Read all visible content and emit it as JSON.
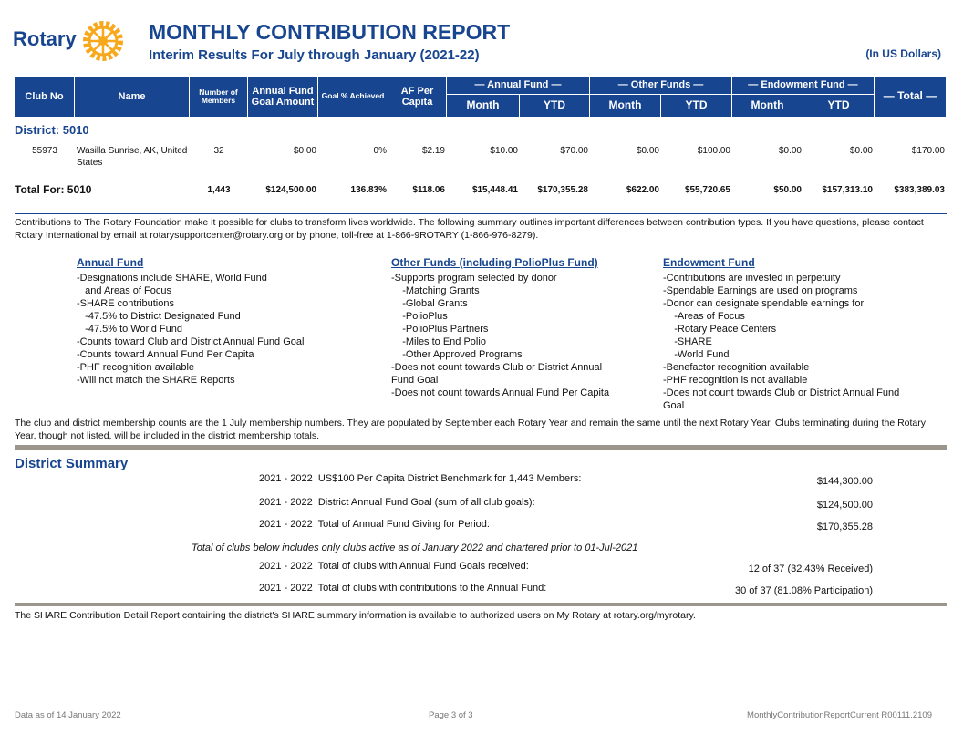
{
  "header": {
    "logo_text": "Rotary",
    "title": "MONTHLY CONTRIBUTION REPORT",
    "subtitle": "Interim Results For July through January (2021-22)",
    "currency_note": "(In US Dollars)"
  },
  "table": {
    "columns": [
      "Club No",
      "Name",
      "Number of Members",
      "Annual Fund Goal Amount",
      "Goal % Achieved",
      "AF Per Capita"
    ],
    "groups": [
      "— Annual Fund —",
      "— Other Funds —",
      "— Endowment Fund —"
    ],
    "subcolumns": [
      "Month",
      "YTD",
      "Month",
      "YTD",
      "Month",
      "YTD"
    ],
    "total_column": "— Total —",
    "district": "District: 5010",
    "rows": [
      [
        "55973",
        "Wasilla Sunrise, AK, United States",
        "32",
        "$0.00",
        "0%",
        "$2.19",
        "$10.00",
        "$70.00",
        "$0.00",
        "$100.00",
        "$0.00",
        "$0.00",
        "$170.00"
      ]
    ],
    "total": [
      "Total For: 5010",
      "1,443",
      "$124,500.00",
      "136.83%",
      "$118.06",
      "$15,448.41",
      "$170,355.28",
      "$622.00",
      "$55,720.65",
      "$50.00",
      "$157,313.10",
      "$383,389.03"
    ]
  },
  "intro": "Contributions to The Rotary Foundation make it possible for clubs to transform lives worldwide. The following summary outlines important differences between contribution types. If you have questions, please contact Rotary International by email at rotarysupportcenter@rotary.org or by phone, toll-free at 1-866-9ROTARY (1-866-976-8279).",
  "fund_types": [
    {
      "title": "Annual Fund",
      "lines": [
        "-Designations include SHARE, World Fund",
        "   and Areas of Focus",
        "-SHARE contributions",
        "   -47.5% to District Designated Fund",
        "   -47.5% to World Fund",
        "-Counts toward Club and District Annual Fund Goal",
        "-Counts toward Annual Fund Per Capita",
        "-PHF recognition available",
        "-Will not match the SHARE Reports"
      ]
    },
    {
      "title": "Other Funds (including PolioPlus Fund)",
      "lines": [
        "-Supports program selected by donor",
        "    -Matching Grants",
        "    -Global Grants",
        "    -PolioPlus",
        "    -PolioPlus Partners",
        "    -Miles to End Polio",
        "    -Other Approved Programs",
        "-Does not count towards Club or District Annual",
        "Fund Goal",
        "-Does not count towards Annual Fund Per Capita"
      ]
    },
    {
      "title": "Endowment Fund",
      "lines": [
        "-Contributions are invested in perpetuity",
        "-Spendable Earnings are used on programs",
        "-Donor can designate spendable earnings for",
        "    -Areas of Focus",
        "    -Rotary Peace Centers",
        "    -SHARE",
        "    -World Fund",
        "-Benefactor recognition available",
        "-PHF recognition is not available",
        "-Does not count towards Club or District Annual Fund",
        "Goal"
      ]
    }
  ],
  "membership_note": "The club and district membership counts are the 1 July membership numbers.  They are populated by September each Rotary Year and remain the same until the next Rotary Year. Clubs terminating during the Rotary Year, though not listed, will be included in the district membership totals.",
  "summary": {
    "title": "District Summary",
    "rows": [
      {
        "label": "2021 - 2022  US$100 Per Capita District Benchmark for 1,443 Members:",
        "value": "$144,300.00"
      },
      {
        "label": "2021 - 2022  District Annual Fund Goal (sum of all club goals):",
        "value": "$124,500.00"
      },
      {
        "label": "2021 - 2022  Total of Annual Fund Giving for Period:",
        "value": "$170,355.28"
      }
    ],
    "note": "Total of clubs below includes only clubs active as of January 2022 and chartered prior to 01-Jul-2021",
    "club_rows": [
      {
        "label": "2021 - 2022  Total of clubs with Annual Fund Goals received:",
        "value": "12 of 37 (32.43% Received)"
      },
      {
        "label": "2021 - 2022  Total of clubs with contributions to the Annual Fund:",
        "value": "30 of 37 (81.08% Participation)"
      }
    ]
  },
  "share_note": "The SHARE Contribution Detail Report containing the district's SHARE summary information is available to authorized users on My Rotary at rotary.org/myrotary.",
  "footer": {
    "left": "Data as of 14 January 2022",
    "center": "Page 3 of 3",
    "right": "MonthlyContributionReportCurrent R00111.2109"
  }
}
